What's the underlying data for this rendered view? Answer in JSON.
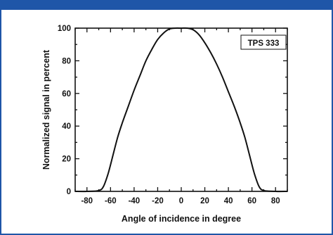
{
  "colors": {
    "frame_border": "#1f56a8",
    "header_band": "#1f56a8",
    "curve": "#111111",
    "axes": "#111111"
  },
  "chart_data": {
    "type": "line",
    "title": "",
    "xlabel": "Angle of incidence in degree",
    "ylabel": "Normalized signal in percent",
    "xlim": [
      -90,
      90
    ],
    "ylim": [
      0,
      100
    ],
    "x_ticks": [
      -80,
      -60,
      -40,
      -20,
      0,
      20,
      40,
      60,
      80
    ],
    "y_ticks": [
      0,
      20,
      40,
      60,
      80,
      100
    ],
    "grid": false,
    "legend_position": "top-right",
    "series": [
      {
        "name": "TPS 333",
        "x": [
          -90,
          -80,
          -70,
          -66,
          -62,
          -58,
          -54,
          -50,
          -45,
          -40,
          -35,
          -30,
          -25,
          -20,
          -15,
          -10,
          -5,
          0,
          5,
          10,
          15,
          20,
          25,
          30,
          35,
          40,
          45,
          50,
          54,
          58,
          62,
          66,
          70,
          80,
          90
        ],
        "y": [
          0,
          0,
          0.5,
          3,
          11,
          22,
          33,
          42,
          52,
          62,
          71,
          80,
          87,
          93,
          97,
          99.5,
          100,
          100,
          100,
          99,
          96,
          91,
          85,
          78,
          70,
          61,
          52,
          42,
          33,
          22,
          11,
          3,
          0.5,
          0,
          0
        ]
      }
    ]
  }
}
